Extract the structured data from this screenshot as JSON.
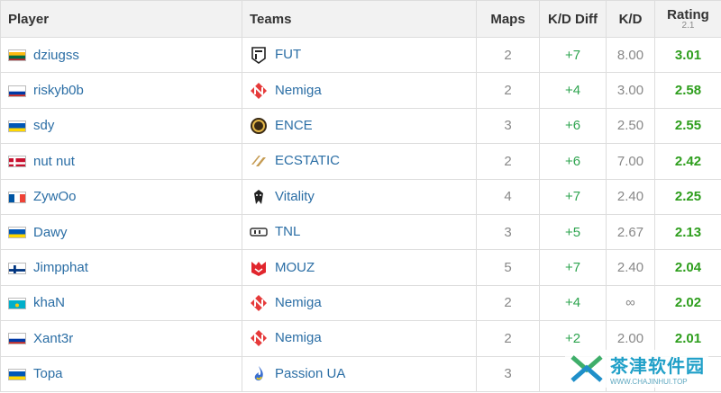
{
  "headers": {
    "player": "Player",
    "teams": "Teams",
    "maps": "Maps",
    "kd_diff": "K/D Diff",
    "kd": "K/D",
    "rating": "Rating",
    "rating_sub": "2.1"
  },
  "rows": [
    {
      "player": "dziugss",
      "flag": "lithuania",
      "team": "FUT",
      "team_icon": "fut-logo-icon",
      "maps": "2",
      "kd_diff": "+7",
      "kd": "8.00",
      "rating": "3.01"
    },
    {
      "player": "riskyb0b",
      "flag": "russia",
      "team": "Nemiga",
      "team_icon": "nemiga-logo-icon",
      "maps": "2",
      "kd_diff": "+4",
      "kd": "3.00",
      "rating": "2.58"
    },
    {
      "player": "sdy",
      "flag": "ukraine",
      "team": "ENCE",
      "team_icon": "ence-logo-icon",
      "maps": "3",
      "kd_diff": "+6",
      "kd": "2.50",
      "rating": "2.55"
    },
    {
      "player": "nut nut",
      "flag": "denmark",
      "team": "ECSTATIC",
      "team_icon": "ecstatic-logo-icon",
      "maps": "2",
      "kd_diff": "+6",
      "kd": "7.00",
      "rating": "2.42"
    },
    {
      "player": "ZywOo",
      "flag": "france",
      "team": "Vitality",
      "team_icon": "vitality-logo-icon",
      "maps": "4",
      "kd_diff": "+7",
      "kd": "2.40",
      "rating": "2.25"
    },
    {
      "player": "Dawy",
      "flag": "ukraine",
      "team": "TNL",
      "team_icon": "tnl-logo-icon",
      "maps": "3",
      "kd_diff": "+5",
      "kd": "2.67",
      "rating": "2.13"
    },
    {
      "player": "Jimpphat",
      "flag": "finland",
      "team": "MOUZ",
      "team_icon": "mouz-logo-icon",
      "maps": "5",
      "kd_diff": "+7",
      "kd": "2.40",
      "rating": "2.04"
    },
    {
      "player": "khaN",
      "flag": "kazakhstan",
      "team": "Nemiga",
      "team_icon": "nemiga-logo-icon",
      "maps": "2",
      "kd_diff": "+4",
      "kd": "∞",
      "rating": "2.02"
    },
    {
      "player": "Xant3r",
      "flag": "russia",
      "team": "Nemiga",
      "team_icon": "nemiga-logo-icon",
      "maps": "2",
      "kd_diff": "+2",
      "kd": "2.00",
      "rating": "2.01"
    },
    {
      "player": "Topa",
      "flag": "ukraine",
      "team": "Passion UA",
      "team_icon": "passion-ua-logo-icon",
      "maps": "3",
      "kd_diff": "",
      "kd": "",
      "rating": ""
    }
  ],
  "colors": {
    "link": "#2b6ea5",
    "kd_diff_positive": "#2ea44f",
    "rating": "#2e9e1d",
    "header_bg": "#f2f2f2"
  },
  "watermark": {
    "title": "茶津软件园",
    "url": "WWW.CHAJINHUI.TOP"
  }
}
